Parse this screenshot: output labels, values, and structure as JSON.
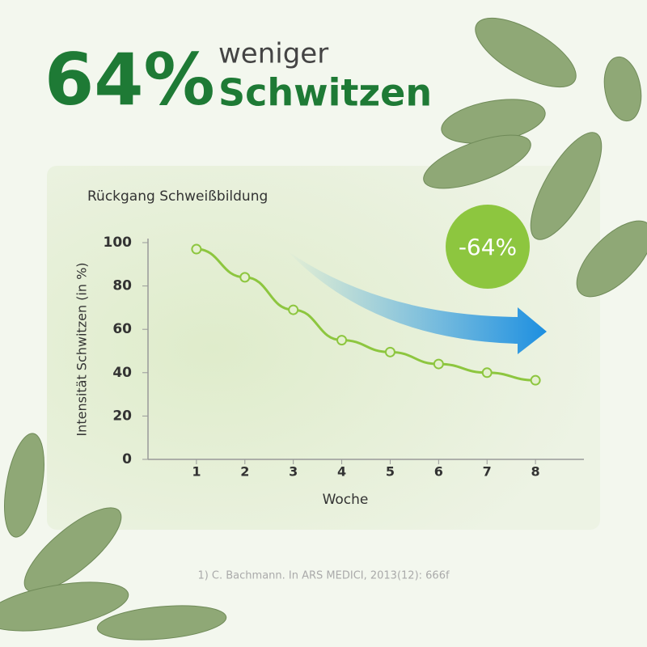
{
  "header": {
    "figure": "64%",
    "line1": "weniger",
    "line2": "Schwitzen"
  },
  "chart_data": {
    "type": "line",
    "title": "Rückgang Schweißbildung",
    "x_label": "Woche",
    "y_label": "Intensität Schwitzen (in %)",
    "x": [
      1,
      2,
      3,
      4,
      5,
      6,
      7,
      8
    ],
    "series": [
      {
        "name": "Intensität",
        "color": "#8dc63f",
        "values": [
          97,
          84,
          69,
          55,
          49.5,
          44,
          40,
          36.5
        ]
      }
    ],
    "xlim": [
      0,
      9
    ],
    "xticks": [
      1,
      2,
      3,
      4,
      5,
      6,
      7,
      8
    ],
    "ylim": [
      0,
      100
    ],
    "yticks": [
      0,
      20,
      40,
      60,
      80,
      100
    ],
    "annotation": "-64%"
  },
  "footnote": "1) C. Bachmann. In ARS MEDICI, 2013(12): 666f"
}
